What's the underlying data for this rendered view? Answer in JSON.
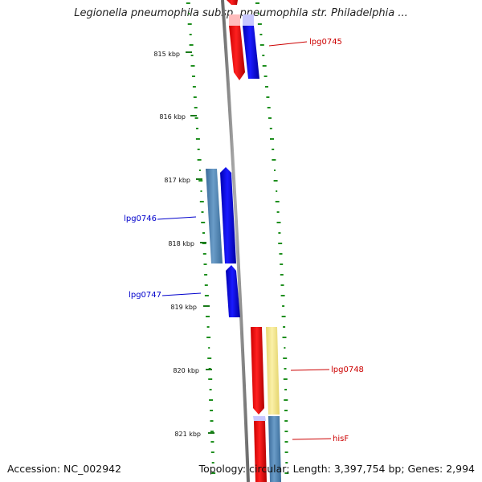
{
  "title": "Legionella pneumophila subsp. pneumophila str. Philadelphia ...",
  "footer": {
    "accession": "Accession: NC_002942",
    "topology": "Topology: circular; Length: 3,397,754 bp; Genes: 2,994"
  },
  "ticks": [
    {
      "label": "815 kbp"
    },
    {
      "label": "816 kbp"
    },
    {
      "label": "817 kbp"
    },
    {
      "label": "818 kbp"
    },
    {
      "label": "819 kbp"
    },
    {
      "label": "820 kbp"
    },
    {
      "label": "821 kbp"
    }
  ],
  "genes": [
    {
      "name": "lpg0745",
      "strand": "reverse",
      "color": "#cc0000"
    },
    {
      "name": "lpg0746",
      "strand": "forward",
      "color": "#0000cc"
    },
    {
      "name": "lpg0747",
      "strand": "forward",
      "color": "#0000cc"
    },
    {
      "name": "lpg0748",
      "strand": "reverse",
      "color": "#cc0000"
    },
    {
      "name": "hisF",
      "strand": "reverse",
      "color": "#cc0000"
    }
  ],
  "colors": {
    "backbone": "#8a8a8a",
    "gc_skew": "#1f8f1f",
    "red_feature": "#ff0000",
    "blue_feature": "#0000ff",
    "steel_feature": "#4a7fb0",
    "yellow_feature": "#f2e68a"
  }
}
